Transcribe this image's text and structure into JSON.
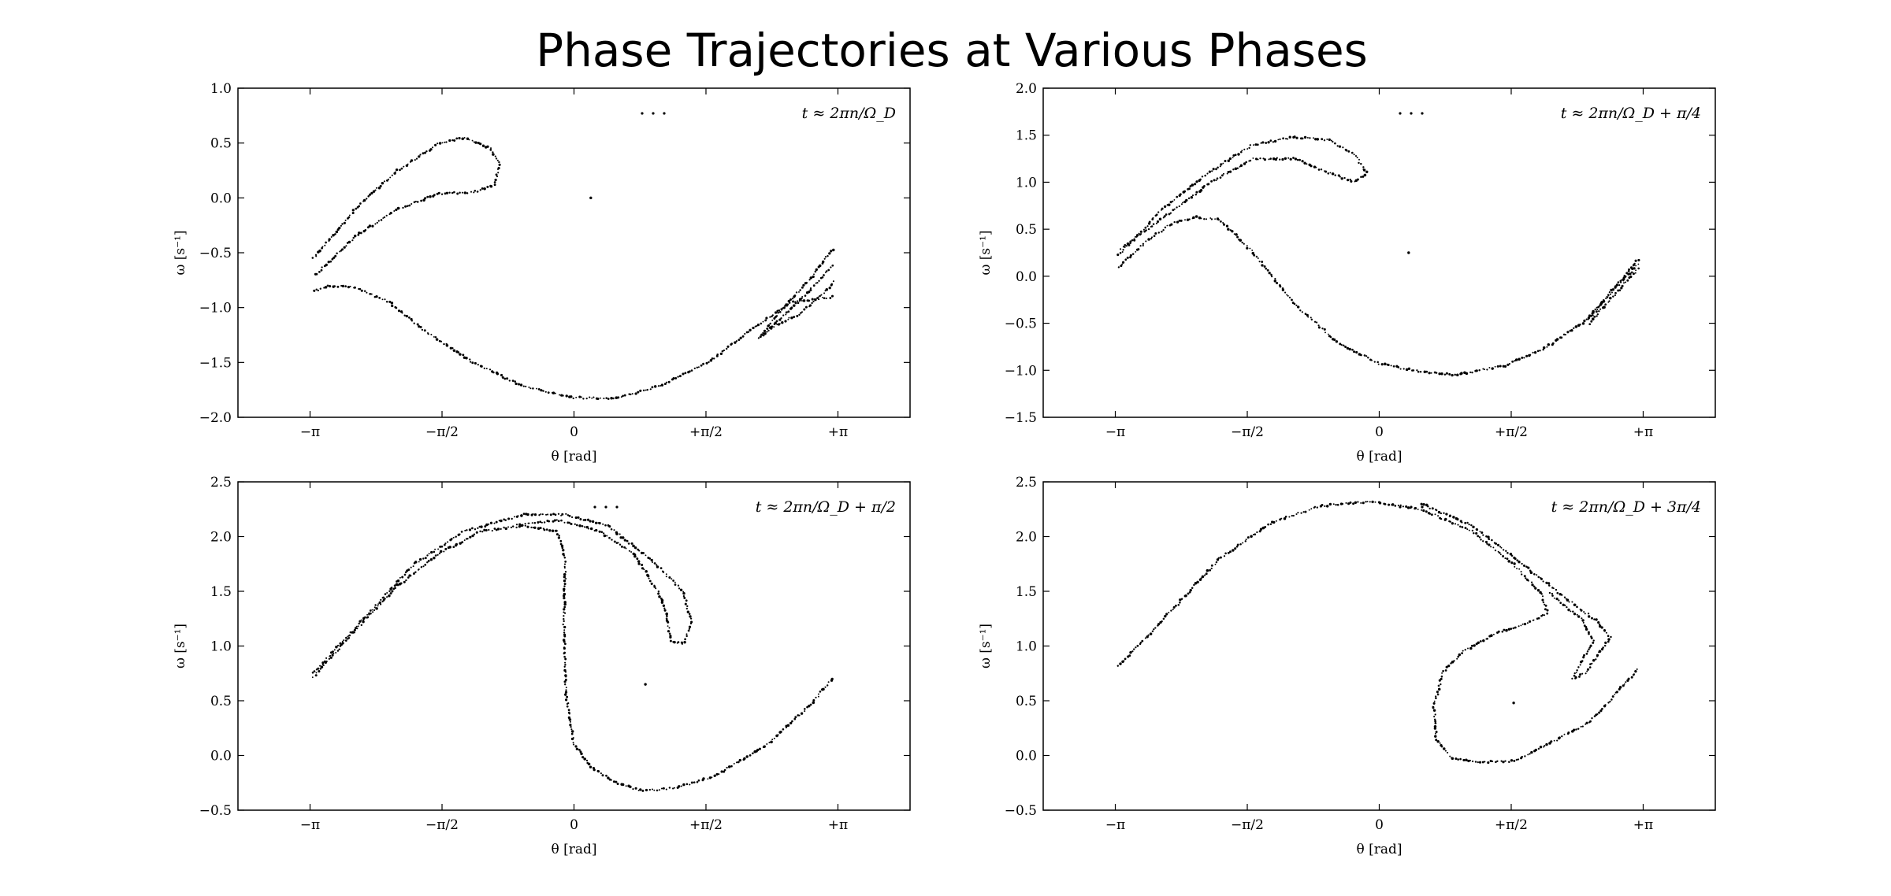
{
  "figure_title": "Phase Trajectories at Various Phases",
  "chart_data": [
    {
      "type": "scatter",
      "legend": "t ≈ 2πn/Ω_D",
      "legend_position": "top-right",
      "xlabel": "θ [rad]",
      "ylabel": "ω [s⁻¹]",
      "xlim": [
        -4.0,
        4.0
      ],
      "ylim": [
        -2.0,
        1.0
      ],
      "xticks": [
        -3.1416,
        -1.5708,
        0,
        1.5708,
        3.1416
      ],
      "xtick_labels": [
        "−π",
        "−π/2",
        "0",
        "+π/2",
        "+π"
      ],
      "yticks": [
        -2.0,
        -1.5,
        -1.0,
        -0.5,
        0.0,
        0.5,
        1.0
      ],
      "ytick_labels": [
        "−2.0",
        "−1.5",
        "−1.0",
        "−0.5",
        "0.0",
        "0.5",
        "1.0"
      ],
      "curves": [
        [
          [
            -3.1,
            -0.55
          ],
          [
            -2.6,
            -0.1
          ],
          [
            -2.1,
            0.25
          ],
          [
            -1.6,
            0.5
          ],
          [
            -1.3,
            0.55
          ],
          [
            -1.0,
            0.45
          ],
          [
            -0.88,
            0.3
          ],
          [
            -0.95,
            0.12
          ],
          [
            -1.2,
            0.05
          ],
          [
            -1.6,
            0.04
          ],
          [
            -2.1,
            -0.1
          ],
          [
            -2.6,
            -0.35
          ],
          [
            -3.1,
            -0.72
          ]
        ],
        [
          [
            -3.1,
            -0.85
          ],
          [
            -2.9,
            -0.8
          ],
          [
            -2.6,
            -0.82
          ],
          [
            -2.2,
            -0.95
          ],
          [
            -1.8,
            -1.2
          ],
          [
            -1.2,
            -1.5
          ],
          [
            -0.6,
            -1.72
          ],
          [
            0.0,
            -1.82
          ],
          [
            0.5,
            -1.83
          ],
          [
            1.0,
            -1.72
          ],
          [
            1.6,
            -1.5
          ],
          [
            2.1,
            -1.2
          ],
          [
            2.6,
            -0.95
          ],
          [
            3.1,
            -0.9
          ]
        ],
        [
          [
            2.2,
            -1.28
          ],
          [
            2.55,
            -0.95
          ],
          [
            2.8,
            -0.75
          ],
          [
            3.1,
            -0.45
          ]
        ],
        [
          [
            2.25,
            -1.25
          ],
          [
            2.6,
            -1.0
          ],
          [
            2.85,
            -0.8
          ],
          [
            3.1,
            -0.6
          ]
        ],
        [
          [
            2.3,
            -1.2
          ],
          [
            2.7,
            -1.05
          ],
          [
            3.0,
            -0.85
          ],
          [
            3.12,
            -0.75
          ]
        ]
      ],
      "isolated_points": [
        [
          0.2,
          0.0
        ]
      ]
    },
    {
      "type": "scatter",
      "legend": "t ≈ 2πn/Ω_D + π/4",
      "legend_position": "top-right",
      "xlabel": "θ [rad]",
      "ylabel": "ω [s⁻¹]",
      "xlim": [
        -4.0,
        4.0
      ],
      "ylim": [
        -1.5,
        2.0
      ],
      "xticks": [
        -3.1416,
        -1.5708,
        0,
        1.5708,
        3.1416
      ],
      "xtick_labels": [
        "−π",
        "−π/2",
        "0",
        "+π/2",
        "+π"
      ],
      "yticks": [
        -1.5,
        -1.0,
        -0.5,
        0.0,
        0.5,
        1.0,
        1.5,
        2.0
      ],
      "ytick_labels": [
        "−1.5",
        "−1.0",
        "−0.5",
        "0.0",
        "0.5",
        "1.0",
        "1.5",
        "2.0"
      ],
      "curves": [
        [
          [
            -3.1,
            0.22
          ],
          [
            -2.6,
            0.7
          ],
          [
            -2.0,
            1.12
          ],
          [
            -1.5,
            1.4
          ],
          [
            -1.0,
            1.48
          ],
          [
            -0.6,
            1.45
          ],
          [
            -0.3,
            1.3
          ],
          [
            -0.15,
            1.1
          ],
          [
            -0.3,
            1.0
          ],
          [
            -0.6,
            1.1
          ],
          [
            -1.0,
            1.25
          ],
          [
            -1.5,
            1.25
          ],
          [
            -2.0,
            1.0
          ],
          [
            -2.6,
            0.6
          ],
          [
            -3.1,
            0.28
          ]
        ],
        [
          [
            -3.1,
            0.1
          ],
          [
            -2.8,
            0.35
          ],
          [
            -2.5,
            0.55
          ],
          [
            -2.2,
            0.63
          ],
          [
            -1.9,
            0.6
          ],
          [
            -1.5,
            0.25
          ],
          [
            -1.0,
            -0.3
          ],
          [
            -0.5,
            -0.7
          ],
          [
            0.0,
            -0.93
          ],
          [
            0.5,
            -1.02
          ],
          [
            0.9,
            -1.05
          ],
          [
            1.5,
            -0.95
          ],
          [
            2.0,
            -0.75
          ],
          [
            2.5,
            -0.45
          ],
          [
            3.1,
            0.2
          ]
        ],
        [
          [
            2.5,
            -0.5
          ],
          [
            3.1,
            0.1
          ]
        ],
        [
          [
            2.45,
            -0.48
          ],
          [
            3.1,
            0.15
          ]
        ]
      ],
      "isolated_points": [
        [
          0.35,
          0.25
        ]
      ]
    },
    {
      "type": "scatter",
      "legend": "t ≈ 2πn/Ω_D + π/2",
      "legend_position": "top-right",
      "xlabel": "θ [rad]",
      "ylabel": "ω [s⁻¹]",
      "xlim": [
        -4.0,
        4.0
      ],
      "ylim": [
        -0.5,
        2.5
      ],
      "xticks": [
        -3.1416,
        -1.5708,
        0,
        1.5708,
        3.1416
      ],
      "xtick_labels": [
        "−π",
        "−π/2",
        "0",
        "+π/2",
        "+π"
      ],
      "yticks": [
        -0.5,
        0.0,
        0.5,
        1.0,
        1.5,
        2.0,
        2.5
      ],
      "ytick_labels": [
        "−0.5",
        "0.0",
        "0.5",
        "1.0",
        "1.5",
        "2.0",
        "2.5"
      ],
      "curves": [
        [
          [
            -3.1,
            0.72
          ],
          [
            -2.6,
            1.15
          ],
          [
            -2.1,
            1.55
          ],
          [
            -1.6,
            1.85
          ],
          [
            -1.1,
            2.05
          ],
          [
            -0.6,
            2.1
          ],
          [
            -0.2,
            2.05
          ],
          [
            -0.1,
            1.8
          ],
          [
            -0.12,
            1.2
          ],
          [
            -0.1,
            0.6
          ],
          [
            0.0,
            0.1
          ],
          [
            0.2,
            -0.1
          ],
          [
            0.5,
            -0.25
          ],
          [
            0.8,
            -0.32
          ],
          [
            1.2,
            -0.3
          ],
          [
            1.7,
            -0.18
          ],
          [
            2.3,
            0.1
          ],
          [
            2.8,
            0.45
          ],
          [
            3.1,
            0.72
          ]
        ],
        [
          [
            -3.1,
            0.75
          ],
          [
            -2.5,
            1.25
          ],
          [
            -1.9,
            1.75
          ],
          [
            -1.3,
            2.05
          ],
          [
            -0.6,
            2.2
          ],
          [
            -0.1,
            2.2
          ],
          [
            0.4,
            2.1
          ],
          [
            0.9,
            1.8
          ],
          [
            1.3,
            1.5
          ],
          [
            1.4,
            1.2
          ],
          [
            1.3,
            1.02
          ],
          [
            1.15,
            1.05
          ],
          [
            1.1,
            1.3
          ],
          [
            1.0,
            1.5
          ],
          [
            0.7,
            1.85
          ],
          [
            0.3,
            2.05
          ],
          [
            -0.2,
            2.15
          ],
          [
            -0.7,
            2.1
          ]
        ]
      ],
      "isolated_points": [
        [
          0.85,
          0.65
        ]
      ]
    },
    {
      "type": "scatter",
      "legend": "t ≈ 2πn/Ω_D + 3π/4",
      "legend_position": "top-right",
      "xlabel": "θ [rad]",
      "ylabel": "ω [s⁻¹]",
      "xlim": [
        -4.0,
        4.0
      ],
      "ylim": [
        -0.5,
        2.5
      ],
      "xticks": [
        -3.1416,
        -1.5708,
        0,
        1.5708,
        3.1416
      ],
      "xtick_labels": [
        "−π",
        "−π/2",
        "0",
        "+π/2",
        "+π"
      ],
      "yticks": [
        -0.5,
        0.0,
        0.5,
        1.0,
        1.5,
        2.0,
        2.5
      ],
      "ytick_labels": [
        "−0.5",
        "0.0",
        "0.5",
        "1.0",
        "1.5",
        "2.0",
        "2.5"
      ],
      "curves": [
        [
          [
            -3.1,
            0.82
          ],
          [
            -2.5,
            1.3
          ],
          [
            -1.9,
            1.8
          ],
          [
            -1.3,
            2.12
          ],
          [
            -0.7,
            2.28
          ],
          [
            -0.1,
            2.32
          ],
          [
            0.5,
            2.25
          ],
          [
            1.1,
            2.05
          ],
          [
            1.6,
            1.75
          ],
          [
            1.95,
            1.45
          ],
          [
            2.0,
            1.3
          ],
          [
            1.8,
            1.22
          ],
          [
            1.4,
            1.12
          ],
          [
            1.0,
            0.95
          ],
          [
            0.75,
            0.75
          ],
          [
            0.65,
            0.45
          ],
          [
            0.68,
            0.15
          ],
          [
            0.85,
            -0.02
          ],
          [
            1.2,
            -0.06
          ],
          [
            1.6,
            -0.05
          ],
          [
            2.0,
            0.1
          ],
          [
            2.5,
            0.3
          ],
          [
            3.1,
            0.8
          ]
        ],
        [
          [
            0.5,
            2.3
          ],
          [
            1.1,
            2.1
          ],
          [
            1.7,
            1.75
          ],
          [
            2.2,
            1.45
          ],
          [
            2.6,
            1.22
          ],
          [
            2.75,
            1.08
          ],
          [
            2.6,
            0.92
          ],
          [
            2.45,
            0.75
          ],
          [
            2.3,
            0.7
          ],
          [
            2.4,
            0.85
          ],
          [
            2.55,
            1.05
          ],
          [
            2.4,
            1.25
          ],
          [
            2.0,
            1.5
          ]
        ]
      ],
      "isolated_points": [
        [
          1.6,
          0.48
        ]
      ]
    }
  ]
}
